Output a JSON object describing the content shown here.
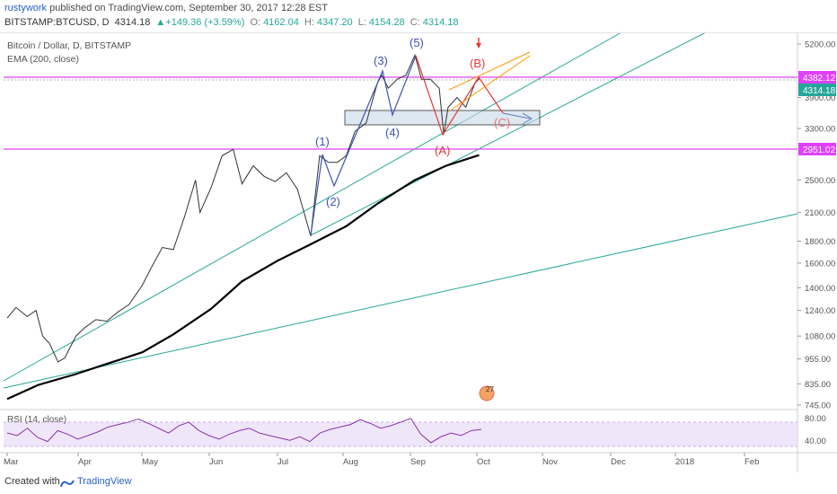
{
  "header": {
    "author": "rustywork",
    "published_text": "published on TradingView.com, September 30, 2017 12:28 EST",
    "symbol": "BITSTAMP:BTCUSD, D",
    "last": "4314.18",
    "change": "▲+149.36 (+3.59%)",
    "o_label": "O:",
    "o_value": "4162.04",
    "h_label": "H:",
    "h_value": "4347.20",
    "l_label": "L:",
    "l_value": "4154.28",
    "c_label": "C:",
    "c_value": "4314.18"
  },
  "footer": {
    "created": "Created with",
    "brand": "TradingView"
  },
  "chart_data": {
    "type": "line",
    "title": "Bitcoin / Dollar, D, BITSTAMP",
    "indicator": "EMA (200, close)",
    "rsi_label": "RSI (14, close)",
    "x_ticks": [
      "Mar",
      "Apr",
      "May",
      "Jun",
      "Jul",
      "Aug",
      "Sep",
      "Oct",
      "Nov",
      "Dec",
      "2018",
      "Feb"
    ],
    "y_ticks": [
      5200,
      4382.12,
      4314.18,
      3900,
      3300,
      2951.02,
      2500,
      2100,
      1800,
      1600,
      1400,
      1240,
      1080,
      955,
      835,
      745
    ],
    "y_tick_labels": [
      "5200.00",
      "4382.12",
      "4314.18",
      "3900.00",
      "3300.00",
      "2951.02",
      "2500.00",
      "2100.00",
      "1800.00",
      "1600.00",
      "1400.00",
      "1240.00",
      "1080.00",
      "955.00",
      "835.00",
      "745.00"
    ],
    "log_scale": true,
    "horizontal_levels": [
      4382.12,
      2951.02
    ],
    "price_series": {
      "name": "BTCUSD",
      "points": [
        [
          "2017-03-01",
          1190
        ],
        [
          "2017-03-05",
          1260
        ],
        [
          "2017-03-10",
          1200
        ],
        [
          "2017-03-14",
          1240
        ],
        [
          "2017-03-17",
          1080
        ],
        [
          "2017-03-20",
          1040
        ],
        [
          "2017-03-24",
          940
        ],
        [
          "2017-03-27",
          960
        ],
        [
          "2017-04-01",
          1080
        ],
        [
          "2017-04-05",
          1130
        ],
        [
          "2017-04-10",
          1180
        ],
        [
          "2017-04-15",
          1170
        ],
        [
          "2017-04-20",
          1230
        ],
        [
          "2017-04-25",
          1280
        ],
        [
          "2017-05-01",
          1420
        ],
        [
          "2017-05-05",
          1560
        ],
        [
          "2017-05-10",
          1740
        ],
        [
          "2017-05-15",
          1720
        ],
        [
          "2017-05-20",
          2050
        ],
        [
          "2017-05-25",
          2500
        ],
        [
          "2017-05-27",
          2100
        ],
        [
          "2017-06-01",
          2400
        ],
        [
          "2017-06-06",
          2850
        ],
        [
          "2017-06-11",
          2950
        ],
        [
          "2017-06-15",
          2450
        ],
        [
          "2017-06-20",
          2700
        ],
        [
          "2017-06-25",
          2550
        ],
        [
          "2017-06-30",
          2480
        ],
        [
          "2017-07-05",
          2600
        ],
        [
          "2017-07-10",
          2380
        ],
        [
          "2017-07-16",
          1850
        ],
        [
          "2017-07-20",
          2850
        ],
        [
          "2017-07-24",
          2750
        ],
        [
          "2017-07-28",
          2750
        ],
        [
          "2017-08-01",
          2850
        ],
        [
          "2017-08-05",
          3250
        ],
        [
          "2017-08-10",
          3400
        ],
        [
          "2017-08-15",
          4200
        ],
        [
          "2017-08-17",
          4400
        ],
        [
          "2017-08-20",
          4100
        ],
        [
          "2017-08-24",
          4300
        ],
        [
          "2017-08-28",
          4400
        ],
        [
          "2017-09-01",
          4900
        ],
        [
          "2017-09-04",
          4300
        ],
        [
          "2017-09-08",
          4300
        ],
        [
          "2017-09-12",
          4100
        ],
        [
          "2017-09-14",
          3200
        ],
        [
          "2017-09-16",
          3700
        ],
        [
          "2017-09-20",
          3900
        ],
        [
          "2017-09-24",
          3700
        ],
        [
          "2017-09-28",
          4200
        ],
        [
          "2017-09-30",
          4314.18
        ]
      ]
    },
    "ema_series": {
      "name": "EMA (200, close)",
      "points": [
        [
          "2017-03-01",
          770
        ],
        [
          "2017-03-15",
          830
        ],
        [
          "2017-04-01",
          880
        ],
        [
          "2017-04-15",
          930
        ],
        [
          "2017-05-01",
          990
        ],
        [
          "2017-05-15",
          1090
        ],
        [
          "2017-06-01",
          1250
        ],
        [
          "2017-06-15",
          1450
        ],
        [
          "2017-07-01",
          1620
        ],
        [
          "2017-07-15",
          1760
        ],
        [
          "2017-08-01",
          1950
        ],
        [
          "2017-08-15",
          2200
        ],
        [
          "2017-09-01",
          2500
        ],
        [
          "2017-09-15",
          2700
        ],
        [
          "2017-09-30",
          2860
        ]
      ]
    },
    "rsi_ticks": [
      "80.00",
      "40.00"
    ],
    "elliott_labels": [
      "(1)",
      "(2)",
      "(3)",
      "(4)",
      "(5)",
      "(A)",
      "(B)",
      "(C)"
    ],
    "badge_count": "27",
    "colors": {
      "ema": "#000000",
      "trendline": "#26a69a",
      "level": "#e040fb",
      "impulse": "#3f51b5",
      "corrective": "#e53935",
      "wedge": "#ff9800",
      "rsi": "#7b1fa2"
    }
  }
}
